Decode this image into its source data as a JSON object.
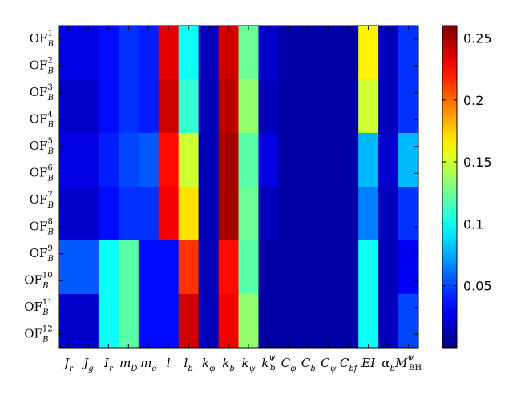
{
  "chart_data": {
    "type": "heatmap",
    "title": "",
    "xlabel": "",
    "ylabel": "",
    "x_labels": [
      {
        "main": "J",
        "sub": "r"
      },
      {
        "main": "J",
        "sub": "g"
      },
      {
        "main": "I",
        "sub": "r"
      },
      {
        "main": "m",
        "sub": "D"
      },
      {
        "main": "m",
        "sub": "e"
      },
      {
        "main": "l"
      },
      {
        "main": "l",
        "sub": "b"
      },
      {
        "main": "k",
        "sub": "φ"
      },
      {
        "main": "k",
        "sub": "b"
      },
      {
        "main": "k",
        "sub": "ψ"
      },
      {
        "main": "k",
        "sub": "b",
        "sup": "ψ"
      },
      {
        "main": "C",
        "sub": "φ"
      },
      {
        "main": "C",
        "sub": "b"
      },
      {
        "main": "C",
        "sub": "ψ"
      },
      {
        "main": "C",
        "sub": "bf"
      },
      {
        "main": "EI"
      },
      {
        "main": "α",
        "sub": "b"
      },
      {
        "main": "M",
        "sub": "BH",
        "sup": "ψ"
      }
    ],
    "y_labels": [
      {
        "main": "OF",
        "sub": "B",
        "sup": "1"
      },
      {
        "main": "OF",
        "sub": "B",
        "sup": "2"
      },
      {
        "main": "OF",
        "sub": "B",
        "sup": "3"
      },
      {
        "main": "OF",
        "sub": "B",
        "sup": "4"
      },
      {
        "main": "OF",
        "sub": "B",
        "sup": "5"
      },
      {
        "main": "OF",
        "sub": "B",
        "sup": "6"
      },
      {
        "main": "OF",
        "sub": "B",
        "sup": "7"
      },
      {
        "main": "OF",
        "sub": "B",
        "sup": "8"
      },
      {
        "main": "OF",
        "sub": "B",
        "sup": "9"
      },
      {
        "main": "OF",
        "sub": "B",
        "sup": "10"
      },
      {
        "main": "OF",
        "sub": "B",
        "sup": "11"
      },
      {
        "main": "OF",
        "sub": "B",
        "sup": "12"
      }
    ],
    "values": [
      [
        0.025,
        0.025,
        0.035,
        0.045,
        0.04,
        0.235,
        0.1,
        0.015,
        0.24,
        0.125,
        0.02,
        0.01,
        0.01,
        0.01,
        0.01,
        0.165,
        0.015,
        0.045
      ],
      [
        0.025,
        0.025,
        0.035,
        0.045,
        0.04,
        0.235,
        0.1,
        0.015,
        0.24,
        0.125,
        0.02,
        0.01,
        0.01,
        0.01,
        0.01,
        0.165,
        0.015,
        0.045
      ],
      [
        0.02,
        0.02,
        0.035,
        0.045,
        0.04,
        0.24,
        0.11,
        0.015,
        0.245,
        0.135,
        0.015,
        0.01,
        0.01,
        0.01,
        0.01,
        0.15,
        0.015,
        0.045
      ],
      [
        0.02,
        0.02,
        0.035,
        0.045,
        0.04,
        0.24,
        0.11,
        0.015,
        0.245,
        0.135,
        0.015,
        0.01,
        0.01,
        0.01,
        0.01,
        0.15,
        0.015,
        0.045
      ],
      [
        0.025,
        0.025,
        0.04,
        0.05,
        0.055,
        0.225,
        0.15,
        0.015,
        0.25,
        0.12,
        0.025,
        0.01,
        0.01,
        0.01,
        0.01,
        0.08,
        0.02,
        0.08
      ],
      [
        0.025,
        0.025,
        0.04,
        0.05,
        0.055,
        0.225,
        0.15,
        0.015,
        0.25,
        0.12,
        0.025,
        0.01,
        0.01,
        0.01,
        0.01,
        0.08,
        0.02,
        0.08
      ],
      [
        0.02,
        0.02,
        0.035,
        0.045,
        0.045,
        0.23,
        0.17,
        0.015,
        0.25,
        0.125,
        0.015,
        0.01,
        0.01,
        0.01,
        0.01,
        0.065,
        0.015,
        0.045
      ],
      [
        0.02,
        0.02,
        0.035,
        0.045,
        0.045,
        0.23,
        0.17,
        0.015,
        0.25,
        0.125,
        0.015,
        0.01,
        0.01,
        0.01,
        0.01,
        0.065,
        0.015,
        0.045
      ],
      [
        0.055,
        0.055,
        0.1,
        0.12,
        0.035,
        0.035,
        0.215,
        0.015,
        0.225,
        0.12,
        0.01,
        0.01,
        0.01,
        0.01,
        0.01,
        0.1,
        0.015,
        0.03
      ],
      [
        0.055,
        0.055,
        0.1,
        0.12,
        0.035,
        0.035,
        0.215,
        0.015,
        0.225,
        0.12,
        0.01,
        0.01,
        0.01,
        0.01,
        0.01,
        0.1,
        0.015,
        0.03
      ],
      [
        0.02,
        0.02,
        0.1,
        0.12,
        0.035,
        0.035,
        0.24,
        0.015,
        0.23,
        0.135,
        0.01,
        0.01,
        0.01,
        0.01,
        0.01,
        0.1,
        0.015,
        0.05
      ],
      [
        0.02,
        0.02,
        0.1,
        0.12,
        0.035,
        0.035,
        0.24,
        0.015,
        0.23,
        0.135,
        0.01,
        0.01,
        0.01,
        0.01,
        0.01,
        0.1,
        0.015,
        0.05
      ]
    ],
    "colorbar": {
      "min": 0.0,
      "max": 0.26,
      "ticks": [
        0.05,
        0.1,
        0.15,
        0.2,
        0.25
      ],
      "tick_labels": [
        "0.05",
        "0.1",
        "0.15",
        "0.2",
        "0.25"
      ],
      "colormap": "jet"
    },
    "grid": false
  }
}
